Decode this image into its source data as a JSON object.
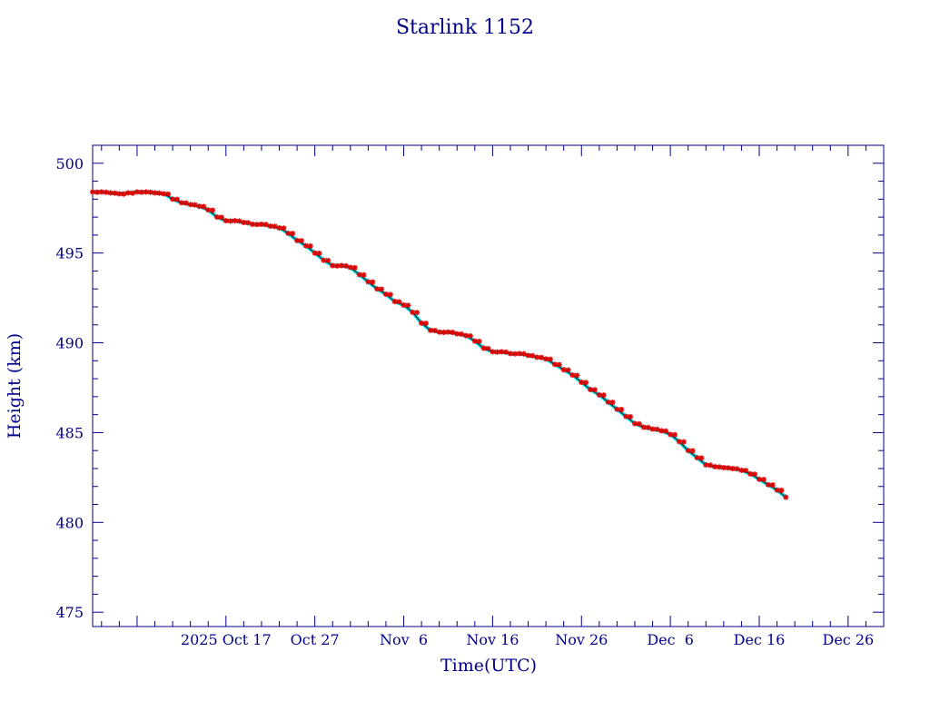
{
  "chart_data": {
    "type": "scatter",
    "title": "Starlink 1152",
    "xlabel": "Time(UTC)",
    "ylabel": "Height (km)",
    "x_type": "date",
    "xlim": [
      "2025-10-02",
      "2025-12-30"
    ],
    "ylim": [
      474.2,
      501
    ],
    "x_tick_values": [
      "2025-10-07",
      "2025-10-17",
      "2025-10-27",
      "2025-11-06",
      "2025-11-16",
      "2025-11-26",
      "2025-12-06",
      "2025-12-16",
      "2025-12-26"
    ],
    "x_tick_labels": [
      "2025 Oct 17",
      "Oct 27",
      "Nov  6",
      "Nov 16",
      "Nov 26",
      "Dec  6",
      "Dec 16",
      "Dec 26"
    ],
    "x_tick_label_dates": [
      "2025-10-17",
      "2025-10-27",
      "2025-11-06",
      "2025-11-16",
      "2025-11-26",
      "2025-12-06",
      "2025-12-16",
      "2025-12-26"
    ],
    "y_ticks": [
      475,
      480,
      485,
      490,
      495,
      500
    ],
    "grid": false,
    "colors": {
      "axis": "#00008b",
      "line": "#00e5ee",
      "points": "#e00000",
      "connector": "#000000"
    },
    "series": [
      {
        "points": [
          [
            "2025-10-02",
            498.4
          ],
          [
            "2025-10-03",
            498.4
          ],
          [
            "2025-10-04",
            498.35
          ],
          [
            "2025-10-05",
            498.3
          ],
          [
            "2025-10-06",
            498.35
          ],
          [
            "2025-10-07",
            498.4
          ],
          [
            "2025-10-08",
            498.4
          ],
          [
            "2025-10-09",
            498.35
          ],
          [
            "2025-10-10",
            498.3
          ],
          [
            "2025-10-11",
            498.0
          ],
          [
            "2025-10-12",
            497.8
          ],
          [
            "2025-10-13",
            497.7
          ],
          [
            "2025-10-14",
            497.6
          ],
          [
            "2025-10-15",
            497.4
          ],
          [
            "2025-10-16",
            497.0
          ],
          [
            "2025-10-17",
            496.8
          ],
          [
            "2025-10-18",
            496.8
          ],
          [
            "2025-10-19",
            496.7
          ],
          [
            "2025-10-20",
            496.6
          ],
          [
            "2025-10-21",
            496.6
          ],
          [
            "2025-10-22",
            496.5
          ],
          [
            "2025-10-23",
            496.4
          ],
          [
            "2025-10-24",
            496.1
          ],
          [
            "2025-10-25",
            495.7
          ],
          [
            "2025-10-26",
            495.4
          ],
          [
            "2025-10-27",
            495.0
          ],
          [
            "2025-10-28",
            494.6
          ],
          [
            "2025-10-29",
            494.3
          ],
          [
            "2025-10-30",
            494.3
          ],
          [
            "2025-10-31",
            494.2
          ],
          [
            "2025-11-01",
            493.8
          ],
          [
            "2025-11-02",
            493.4
          ],
          [
            "2025-11-03",
            493.0
          ],
          [
            "2025-11-04",
            492.7
          ],
          [
            "2025-11-05",
            492.3
          ],
          [
            "2025-11-06",
            492.1
          ],
          [
            "2025-11-07",
            491.7
          ],
          [
            "2025-11-08",
            491.1
          ],
          [
            "2025-11-09",
            490.7
          ],
          [
            "2025-11-10",
            490.6
          ],
          [
            "2025-11-11",
            490.6
          ],
          [
            "2025-11-12",
            490.5
          ],
          [
            "2025-11-13",
            490.4
          ],
          [
            "2025-11-14",
            490.1
          ],
          [
            "2025-11-15",
            489.7
          ],
          [
            "2025-11-16",
            489.5
          ],
          [
            "2025-11-17",
            489.5
          ],
          [
            "2025-11-18",
            489.4
          ],
          [
            "2025-11-19",
            489.4
          ],
          [
            "2025-11-20",
            489.3
          ],
          [
            "2025-11-21",
            489.2
          ],
          [
            "2025-11-22",
            489.1
          ],
          [
            "2025-11-23",
            488.8
          ],
          [
            "2025-11-24",
            488.5
          ],
          [
            "2025-11-25",
            488.2
          ],
          [
            "2025-11-26",
            487.8
          ],
          [
            "2025-11-27",
            487.4
          ],
          [
            "2025-11-28",
            487.1
          ],
          [
            "2025-11-29",
            486.7
          ],
          [
            "2025-11-30",
            486.3
          ],
          [
            "2025-12-01",
            485.9
          ],
          [
            "2025-12-02",
            485.5
          ],
          [
            "2025-12-03",
            485.3
          ],
          [
            "2025-12-04",
            485.2
          ],
          [
            "2025-12-05",
            485.1
          ],
          [
            "2025-12-06",
            484.9
          ],
          [
            "2025-12-07",
            484.5
          ],
          [
            "2025-12-08",
            484.0
          ],
          [
            "2025-12-09",
            483.6
          ],
          [
            "2025-12-10",
            483.2
          ],
          [
            "2025-12-11",
            483.1
          ],
          [
            "2025-12-12",
            483.05
          ],
          [
            "2025-12-13",
            483.0
          ],
          [
            "2025-12-14",
            482.9
          ],
          [
            "2025-12-15",
            482.7
          ],
          [
            "2025-12-16",
            482.4
          ],
          [
            "2025-12-17",
            482.1
          ],
          [
            "2025-12-18",
            481.8
          ],
          [
            "2025-12-19",
            481.4
          ]
        ]
      }
    ]
  }
}
